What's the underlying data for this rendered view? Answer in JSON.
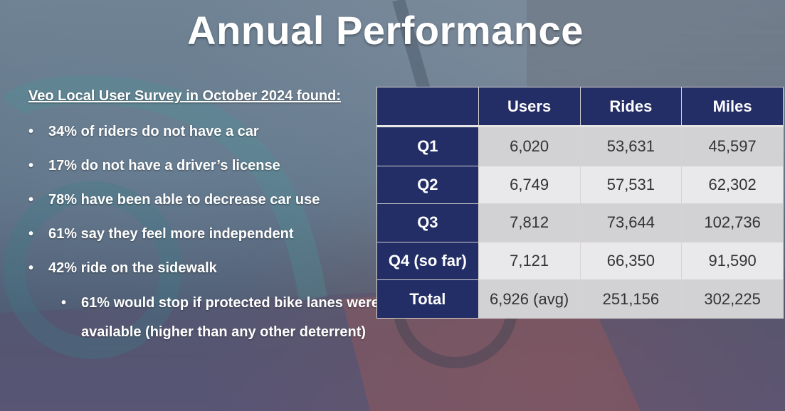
{
  "slide": {
    "title": "Annual Performance"
  },
  "survey": {
    "heading": "Veo Local User Survey in October 2024 found:",
    "findings": [
      "34% of riders do not have a car",
      "17% do not have a driver’s license",
      "78% have been able to decrease car use",
      "61% say they feel more independent",
      "42% ride on the sidewalk"
    ],
    "subfinding": "61% would stop if protected bike lanes were available (higher than any other deterrent)"
  },
  "table": {
    "columns": [
      "",
      "Users",
      "Rides",
      "Miles"
    ],
    "rows": [
      {
        "label": "Q1",
        "users": "6,020",
        "rides": "53,631",
        "miles": "45,597"
      },
      {
        "label": "Q2",
        "users": "6,749",
        "rides": "57,531",
        "miles": "62,302"
      },
      {
        "label": "Q3",
        "users": "7,812",
        "rides": "73,644",
        "miles": "102,736"
      },
      {
        "label": "Q4 (so far)",
        "users": "7,121",
        "rides": "66,350",
        "miles": "91,590"
      },
      {
        "label": "Total",
        "users": "6,926 (avg)",
        "rides": "251,156",
        "miles": "302,225"
      }
    ]
  },
  "colors": {
    "header_bg": "#232d66",
    "cell_light": "#e9e8ea",
    "cell_dark": "#d2d1d3"
  }
}
